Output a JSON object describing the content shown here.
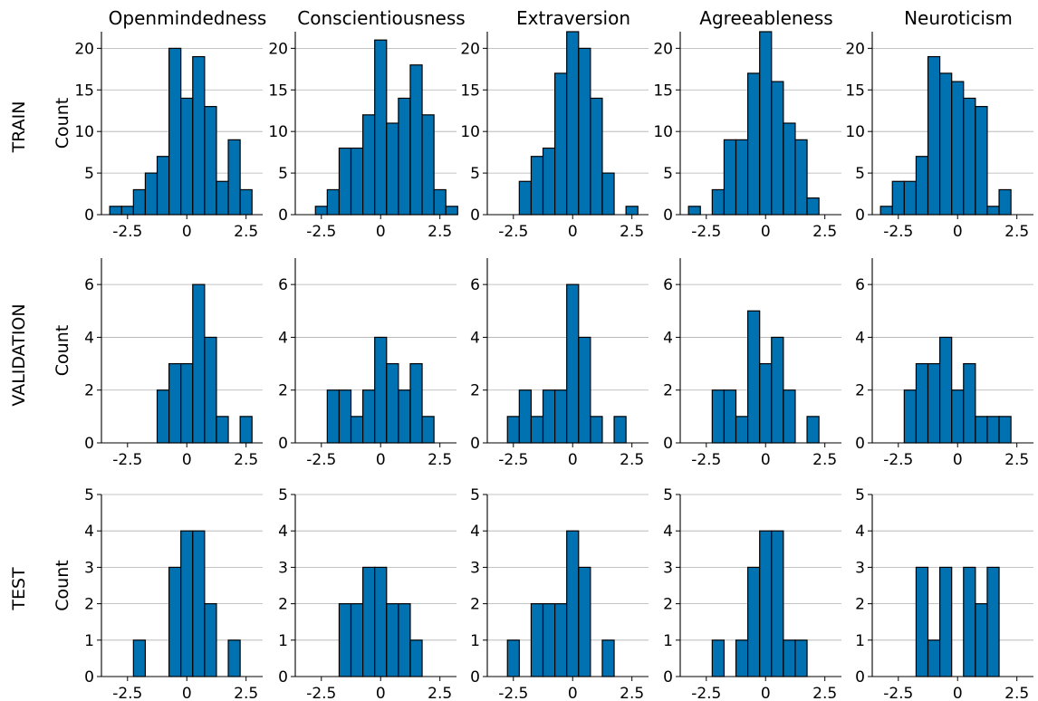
{
  "style": {
    "bar_color": "#0072b2",
    "edge_color": "#000000",
    "grid_color": "#b0b0b0"
  },
  "row_labels": [
    "TRAIN",
    "VALIDATION",
    "TEST"
  ],
  "col_titles": [
    "Openmindedness",
    "Conscientiousness",
    "Extraversion",
    "Agreeableness",
    "Neuroticism"
  ],
  "ylabel": "Count",
  "chart_data": [
    {
      "type": "bar",
      "row": "TRAIN",
      "title": "Openmindedness",
      "ylabel": "Count",
      "xlim": [
        -3.6,
        3.2
      ],
      "ylim": [
        0,
        22
      ],
      "yticks": [
        0,
        5,
        10,
        15,
        20
      ],
      "xticks": [
        -2.5,
        0,
        2.5
      ],
      "xtick_labels": [
        "-2.5",
        "0",
        "2.5"
      ],
      "grid_y": true,
      "bins": {
        "start": -3.25,
        "width": 0.5
      },
      "values": [
        1,
        1,
        3,
        5,
        7,
        20,
        14,
        19,
        13,
        4,
        9,
        3
      ]
    },
    {
      "type": "bar",
      "row": "TRAIN",
      "title": "Conscientiousness",
      "ylabel": "",
      "xlim": [
        -3.6,
        3.2
      ],
      "ylim": [
        0,
        22
      ],
      "yticks": [
        0,
        5,
        10,
        15,
        20
      ],
      "xticks": [
        -2.5,
        0,
        2.5
      ],
      "xtick_labels": [
        "-2.5",
        "0",
        "2.5"
      ],
      "grid_y": true,
      "bins": {
        "start": -2.75,
        "width": 0.5
      },
      "values": [
        1,
        3,
        8,
        8,
        12,
        21,
        11,
        14,
        18,
        12,
        3,
        1
      ]
    },
    {
      "type": "bar",
      "row": "TRAIN",
      "title": "Extraversion",
      "ylabel": "",
      "xlim": [
        -3.6,
        3.2
      ],
      "ylim": [
        0,
        22
      ],
      "yticks": [
        0,
        5,
        10,
        15,
        20
      ],
      "xticks": [
        -2.5,
        0,
        2.5
      ],
      "xtick_labels": [
        "-2.5",
        "0",
        "2.5"
      ],
      "grid_y": true,
      "bins": {
        "start": -2.25,
        "width": 0.5
      },
      "values": [
        4,
        7,
        8,
        17,
        22,
        20,
        14,
        5,
        0,
        1
      ]
    },
    {
      "type": "bar",
      "row": "TRAIN",
      "title": "Agreeableness",
      "ylabel": "",
      "xlim": [
        -3.6,
        3.2
      ],
      "ylim": [
        0,
        22
      ],
      "yticks": [
        0,
        5,
        10,
        15,
        20
      ],
      "xticks": [
        -2.5,
        0,
        2.5
      ],
      "xtick_labels": [
        "-2.5",
        "0",
        "2.5"
      ],
      "grid_y": true,
      "bins": {
        "start": -3.25,
        "width": 0.5
      },
      "values": [
        1,
        0,
        3,
        9,
        9,
        17,
        22,
        16,
        11,
        9,
        2
      ]
    },
    {
      "type": "bar",
      "row": "TRAIN",
      "title": "Neuroticism",
      "ylabel": "",
      "xlim": [
        -3.6,
        3.2
      ],
      "ylim": [
        0,
        22
      ],
      "yticks": [
        0,
        5,
        10,
        15,
        20
      ],
      "xticks": [
        -2.5,
        0,
        2.5
      ],
      "xtick_labels": [
        "-2.5",
        "0",
        "2.5"
      ],
      "grid_y": true,
      "bins": {
        "start": -3.25,
        "width": 0.5
      },
      "values": [
        1,
        4,
        4,
        7,
        19,
        17,
        16,
        14,
        13,
        1,
        3
      ]
    },
    {
      "type": "bar",
      "row": "VALIDATION",
      "title": "Openmindedness",
      "ylabel": "Count",
      "xlim": [
        -3.6,
        3.2
      ],
      "ylim": [
        0,
        7
      ],
      "yticks": [
        0,
        2,
        4,
        6
      ],
      "xticks": [
        -2.5,
        0,
        2.5
      ],
      "xtick_labels": [
        "-2.5",
        "0",
        "2.5"
      ],
      "grid_y": true,
      "bins": {
        "start": -1.25,
        "width": 0.5
      },
      "values": [
        2,
        3,
        3,
        6,
        4,
        1,
        0,
        1
      ]
    },
    {
      "type": "bar",
      "row": "VALIDATION",
      "title": "Conscientiousness",
      "ylabel": "",
      "xlim": [
        -3.6,
        3.2
      ],
      "ylim": [
        0,
        7
      ],
      "yticks": [
        0,
        2,
        4,
        6
      ],
      "xticks": [
        -2.5,
        0,
        2.5
      ],
      "xtick_labels": [
        "-2.5",
        "0",
        "2.5"
      ],
      "grid_y": true,
      "bins": {
        "start": -2.25,
        "width": 0.5
      },
      "values": [
        2,
        2,
        1,
        2,
        4,
        3,
        2,
        3,
        1
      ]
    },
    {
      "type": "bar",
      "row": "VALIDATION",
      "title": "Extraversion",
      "ylabel": "",
      "xlim": [
        -3.6,
        3.2
      ],
      "ylim": [
        0,
        7
      ],
      "yticks": [
        0,
        2,
        4,
        6
      ],
      "xticks": [
        -2.5,
        0,
        2.5
      ],
      "xtick_labels": [
        "-2.5",
        "0",
        "2.5"
      ],
      "grid_y": true,
      "bins": {
        "start": -2.75,
        "width": 0.5
      },
      "values": [
        1,
        2,
        1,
        2,
        2,
        6,
        4,
        1,
        0,
        1
      ]
    },
    {
      "type": "bar",
      "row": "VALIDATION",
      "title": "Agreeableness",
      "ylabel": "",
      "xlim": [
        -3.6,
        3.2
      ],
      "ylim": [
        0,
        7
      ],
      "yticks": [
        0,
        2,
        4,
        6
      ],
      "xticks": [
        -2.5,
        0,
        2.5
      ],
      "xtick_labels": [
        "-2.5",
        "0",
        "2.5"
      ],
      "grid_y": true,
      "bins": {
        "start": -2.25,
        "width": 0.5
      },
      "values": [
        2,
        2,
        1,
        5,
        3,
        4,
        2,
        0,
        1
      ]
    },
    {
      "type": "bar",
      "row": "VALIDATION",
      "title": "Neuroticism",
      "ylabel": "",
      "xlim": [
        -3.6,
        3.2
      ],
      "ylim": [
        0,
        7
      ],
      "yticks": [
        0,
        2,
        4,
        6
      ],
      "xticks": [
        -2.5,
        0,
        2.5
      ],
      "xtick_labels": [
        "-2.5",
        "0",
        "2.5"
      ],
      "grid_y": true,
      "bins": {
        "start": -2.25,
        "width": 0.5
      },
      "values": [
        2,
        3,
        3,
        4,
        2,
        3,
        1,
        1,
        1
      ]
    },
    {
      "type": "bar",
      "row": "TEST",
      "title": "Openmindedness",
      "ylabel": "Count",
      "xlim": [
        -3.6,
        3.2
      ],
      "ylim": [
        0,
        5
      ],
      "yticks": [
        0,
        1,
        2,
        3,
        4,
        5
      ],
      "xticks": [
        -2.5,
        0,
        2.5
      ],
      "xtick_labels": [
        "-2.5",
        "0",
        "2.5"
      ],
      "grid_y": true,
      "bins": {
        "start": -2.25,
        "width": 0.5
      },
      "values": [
        1,
        0,
        0,
        3,
        4,
        4,
        2,
        0,
        1
      ]
    },
    {
      "type": "bar",
      "row": "TEST",
      "title": "Conscientiousness",
      "ylabel": "",
      "xlim": [
        -3.6,
        3.2
      ],
      "ylim": [
        0,
        5
      ],
      "yticks": [
        0,
        1,
        2,
        3,
        4,
        5
      ],
      "xticks": [
        -2.5,
        0,
        2.5
      ],
      "xtick_labels": [
        "-2.5",
        "0",
        "2.5"
      ],
      "grid_y": true,
      "bins": {
        "start": -1.75,
        "width": 0.5
      },
      "values": [
        2,
        2,
        3,
        3,
        2,
        2,
        1
      ]
    },
    {
      "type": "bar",
      "row": "TEST",
      "title": "Extraversion",
      "ylabel": "",
      "xlim": [
        -3.6,
        3.2
      ],
      "ylim": [
        0,
        5
      ],
      "yticks": [
        0,
        1,
        2,
        3,
        4,
        5
      ],
      "xticks": [
        -2.5,
        0,
        2.5
      ],
      "xtick_labels": [
        "-2.5",
        "0",
        "2.5"
      ],
      "grid_y": true,
      "bins": {
        "start": -2.75,
        "width": 0.5
      },
      "values": [
        1,
        0,
        2,
        2,
        2,
        4,
        3,
        0,
        1
      ]
    },
    {
      "type": "bar",
      "row": "TEST",
      "title": "Agreeableness",
      "ylabel": "",
      "xlim": [
        -3.6,
        3.2
      ],
      "ylim": [
        0,
        5
      ],
      "yticks": [
        0,
        1,
        2,
        3,
        4,
        5
      ],
      "xticks": [
        -2.5,
        0,
        2.5
      ],
      "xtick_labels": [
        "-2.5",
        "0",
        "2.5"
      ],
      "grid_y": true,
      "bins": {
        "start": -2.25,
        "width": 0.5
      },
      "values": [
        1,
        0,
        1,
        3,
        4,
        4,
        1,
        1
      ]
    },
    {
      "type": "bar",
      "row": "TEST",
      "title": "Neuroticism",
      "ylabel": "",
      "xlim": [
        -3.6,
        3.2
      ],
      "ylim": [
        0,
        5
      ],
      "yticks": [
        0,
        1,
        2,
        3,
        4,
        5
      ],
      "xticks": [
        -2.5,
        0,
        2.5
      ],
      "xtick_labels": [
        "-2.5",
        "0",
        "2.5"
      ],
      "grid_y": true,
      "bins": {
        "start": -1.75,
        "width": 0.5
      },
      "values": [
        3,
        1,
        3,
        0,
        3,
        2,
        3
      ]
    }
  ]
}
